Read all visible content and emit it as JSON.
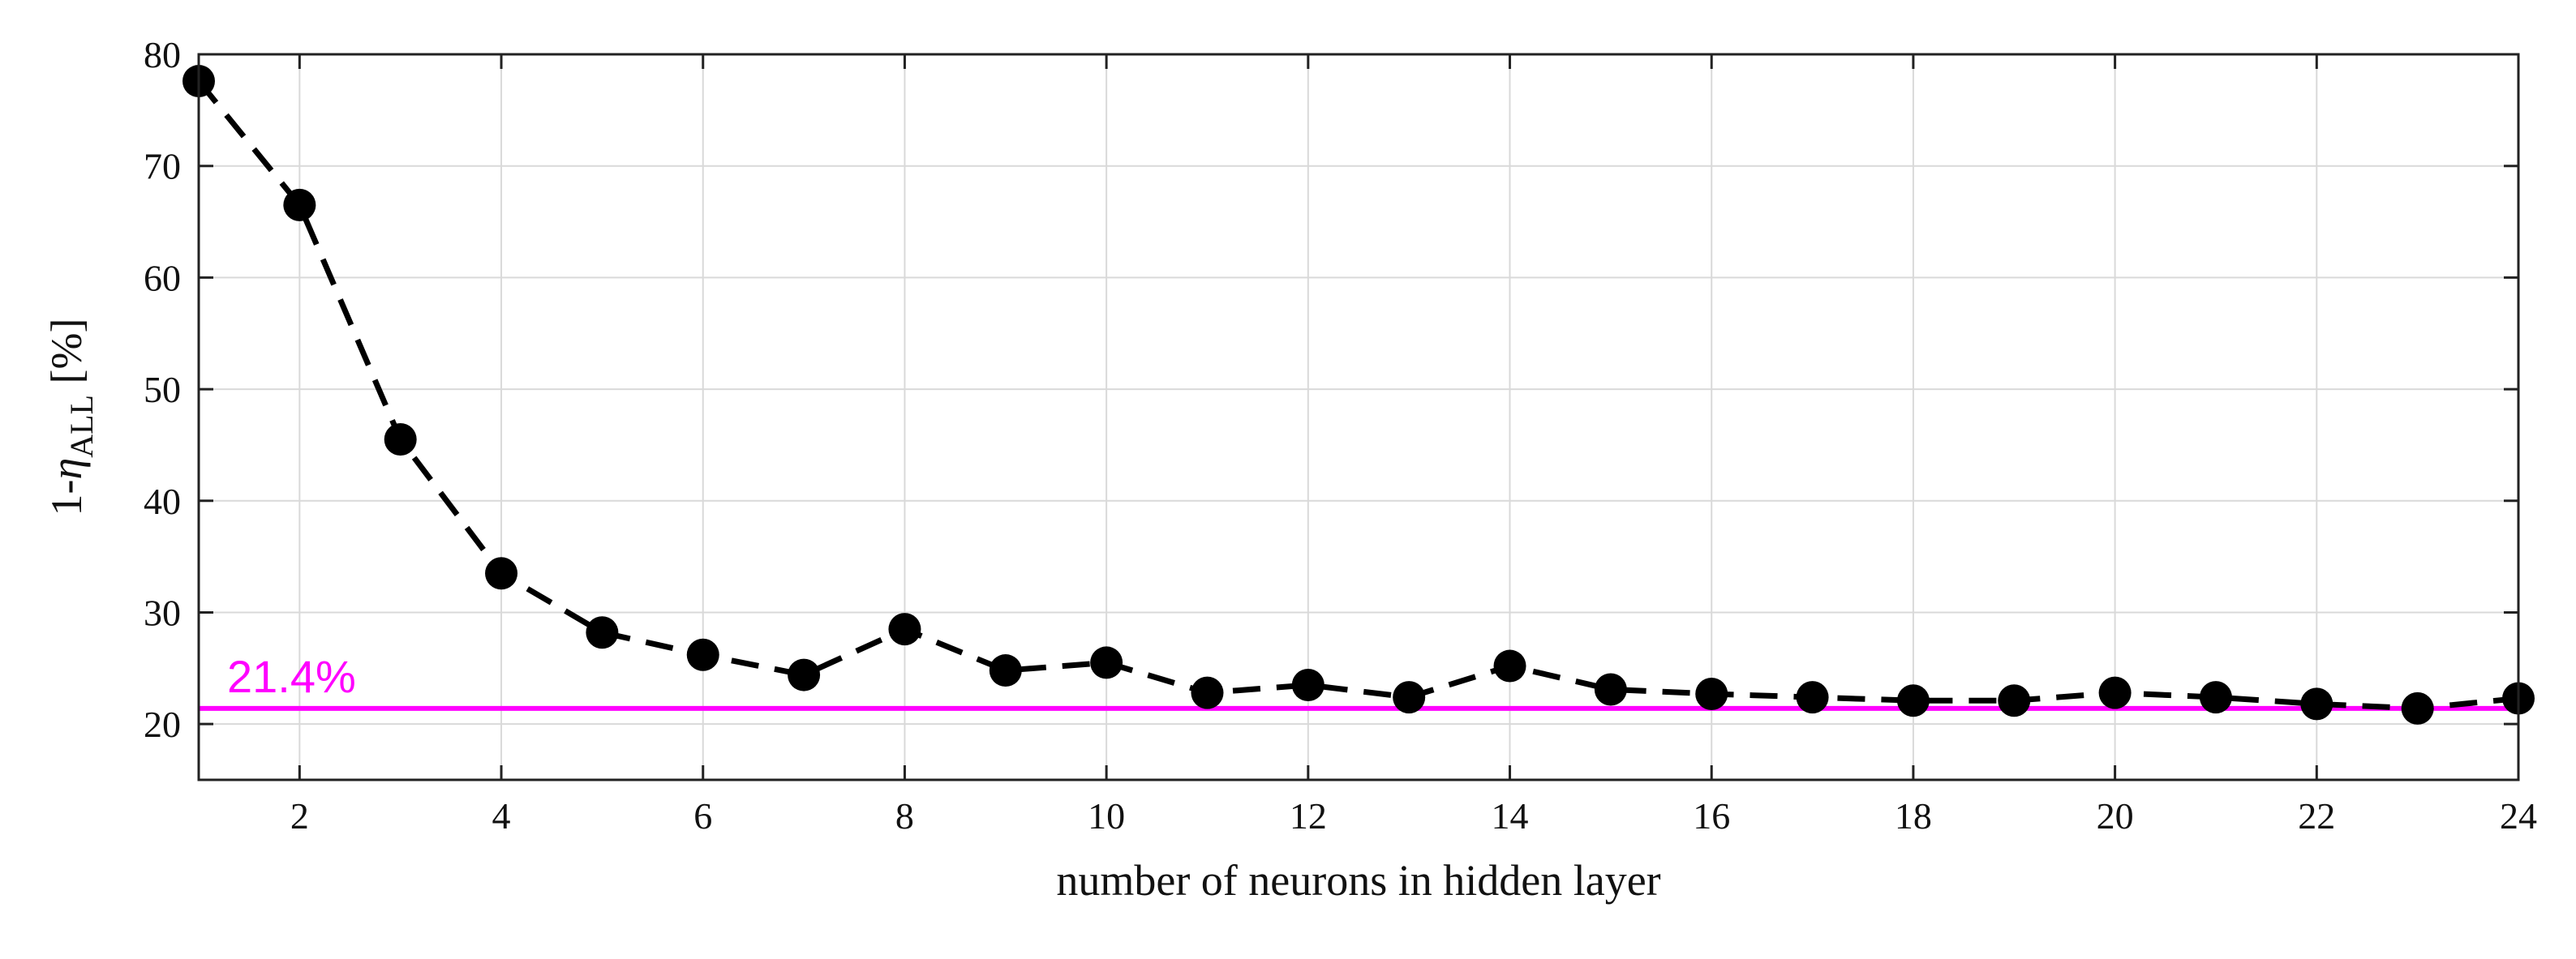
{
  "chart_data": {
    "type": "line",
    "title": "",
    "xlabel": "number of neurons in hidden layer",
    "ylabel": {
      "prefix": "1-",
      "symbol": "η",
      "subscript": "ALL",
      "suffix": " [%]"
    },
    "xlim": [
      1,
      24
    ],
    "ylim": [
      15,
      80
    ],
    "xticks": [
      2,
      4,
      6,
      8,
      10,
      12,
      14,
      16,
      18,
      20,
      22,
      24
    ],
    "yticks": [
      20,
      30,
      40,
      50,
      60,
      70,
      80
    ],
    "grid": true,
    "series": [
      {
        "line_style": "dashed",
        "marker": "filled-circle",
        "color": "#000000",
        "x": [
          1,
          2,
          3,
          4,
          5,
          6,
          7,
          8,
          9,
          10,
          11,
          12,
          13,
          14,
          15,
          16,
          17,
          18,
          19,
          20,
          21,
          22,
          23,
          24
        ],
        "y": [
          77.6,
          66.5,
          45.5,
          33.5,
          28.2,
          26.2,
          24.4,
          28.5,
          24.8,
          25.5,
          22.8,
          23.5,
          22.4,
          25.2,
          23.1,
          22.7,
          22.4,
          22.1,
          22.1,
          22.8,
          22.4,
          21.8,
          21.4,
          22.3
        ]
      }
    ],
    "reference_line": {
      "y": 21.4,
      "label": "21.4%",
      "color": "#ff00ff"
    }
  }
}
